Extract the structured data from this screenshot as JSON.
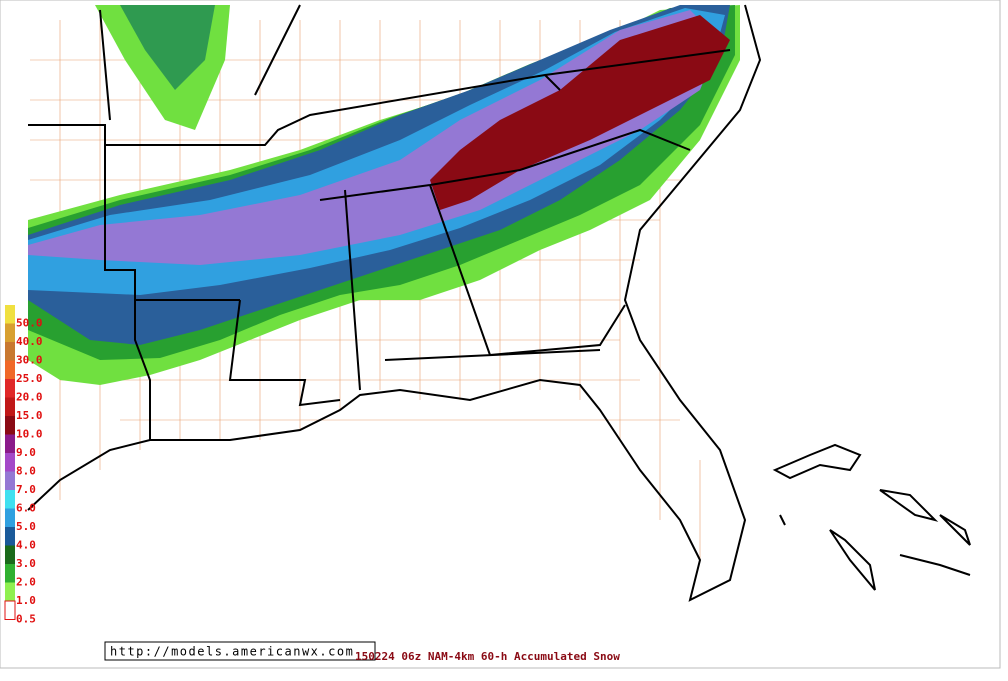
{
  "legend": {
    "colors": [
      "#f0e040",
      "#d8a030",
      "#c87830",
      "#f06828",
      "#e02828",
      "#c01818",
      "#8a0a14",
      "#8a1a8a",
      "#a448c8",
      "#9478d4",
      "#40e0f0",
      "#30a0e0",
      "#1a5a9a",
      "#1a6a1a",
      "#30b030",
      "#90f050",
      "#ffffff"
    ],
    "labels": [
      "50.0",
      "40.0",
      "30.0",
      "25.0",
      "20.0",
      "15.0",
      "10.0",
      "9.0",
      "8.0",
      "7.0",
      "6.0",
      "5.0",
      "4.0",
      "3.0",
      "2.0",
      "1.0",
      "0.5"
    ]
  },
  "footer": {
    "url": "http://models.americanwx.com",
    "caption": "150224 06z NAM-4km 60-h Accumulated Snow"
  }
}
